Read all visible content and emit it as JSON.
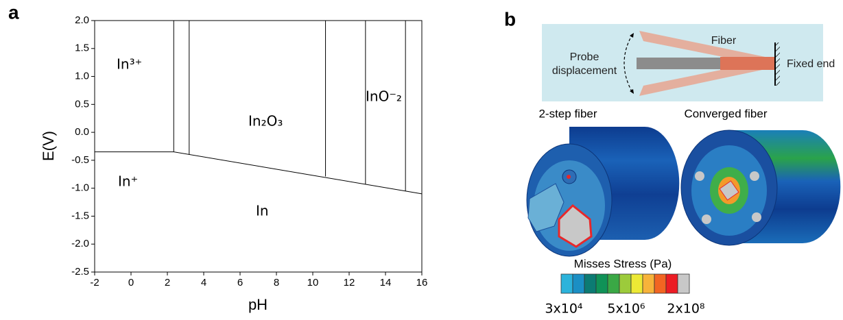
{
  "panel_labels": [
    "a",
    "b"
  ],
  "chart_data": {
    "type": "line",
    "xlabel": "pH",
    "ylabel": "E(V)",
    "xlim": [
      -2,
      16
    ],
    "xticks": [
      -2,
      0,
      2,
      4,
      6,
      8,
      10,
      12,
      14,
      16
    ],
    "ylim": [
      -2.5,
      2.0
    ],
    "yticks": [
      -2.5,
      {
        "value": -2.0,
        "label": "-2.0"
      },
      -1.5,
      {
        "value": -1.0,
        "label": "-1.0"
      },
      -0.5,
      {
        "value": 0.0,
        "label": "0.0"
      },
      0.5,
      {
        "value": 1.0,
        "label": "1.0"
      },
      1.5,
      {
        "value": 2.0,
        "label": "2.0"
      }
    ],
    "color": "#000000",
    "series": [
      {
        "x": [
          -2,
          2.35
        ],
        "values": [
          -0.35,
          -0.35
        ]
      },
      {
        "x": [
          2.35,
          2.35
        ],
        "values": [
          -0.35,
          2.0
        ]
      },
      {
        "x": [
          3.2,
          3.2
        ],
        "values": [
          -0.4,
          2.0
        ]
      },
      {
        "x": [
          2.35,
          16
        ],
        "values": [
          -0.35,
          -1.1
        ]
      },
      {
        "x": [
          10.7,
          10.7
        ],
        "values": [
          -0.79,
          2.0
        ]
      },
      {
        "x": [
          12.9,
          12.9
        ],
        "values": [
          -0.93,
          2.0
        ]
      },
      {
        "x": [
          15.1,
          15.1
        ],
        "values": [
          -1.05,
          2.0
        ]
      }
    ],
    "annotations": [
      "In³⁺",
      "In⁺",
      "In₂O₃",
      "InO⁻₂",
      "In"
    ]
  },
  "diagram": {
    "fiber": "Fiber",
    "probe": [
      "Probe",
      "displacement"
    ],
    "fixed_end": "Fixed end",
    "left_title": "2-step fiber",
    "right_title": "Converged fiber",
    "colorbar": {
      "title": "Misses Stress (Pa)",
      "labels": [
        "3x10⁴",
        "5x10⁶",
        "2x10⁸"
      ]
    }
  }
}
